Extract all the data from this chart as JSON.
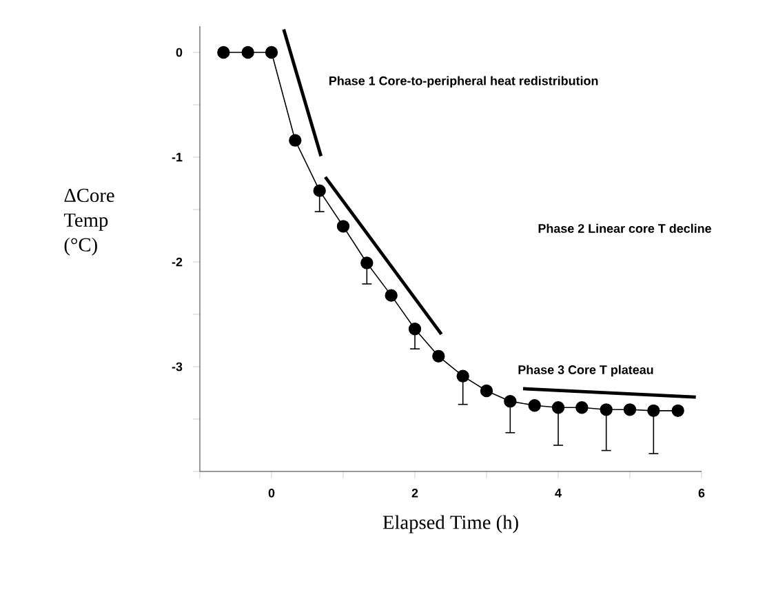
{
  "chart_data": {
    "type": "line",
    "xlabel": "Elapsed Time (h)",
    "ylabel": "ΔCore Temp (°C)",
    "xlim": [
      -1,
      6
    ],
    "xticks": [
      {
        "value": -1,
        "label": null
      },
      0,
      {
        "value": 1,
        "label": null
      },
      2,
      {
        "value": 3,
        "label": null
      },
      4,
      {
        "value": 5,
        "label": null
      },
      6
    ],
    "ylim": [
      -4,
      0.25
    ],
    "yticks": [
      {
        "value": -4,
        "label": null
      },
      {
        "value": -3.5,
        "label": null
      },
      -3,
      {
        "value": -2.5,
        "label": null
      },
      -2,
      {
        "value": -1.5,
        "label": null
      },
      -1,
      {
        "value": -0.5,
        "label": null
      },
      0
    ],
    "grid": false,
    "marker": "circle",
    "line_style": "solid",
    "series": [
      {
        "color": "#000000",
        "x": [
          -0.67,
          -0.33,
          0,
          0.33,
          0.67,
          1,
          1.33,
          1.67,
          2,
          2.33,
          2.67,
          3,
          3.33,
          3.67,
          4,
          4.33,
          4.67,
          5,
          5.33,
          5.67
        ],
        "values": [
          0,
          0,
          0,
          -0.84,
          -1.32,
          -1.66,
          -2.01,
          -2.32,
          -2.64,
          -2.9,
          -3.09,
          -3.23,
          -3.33,
          -3.37,
          -3.39,
          -3.39,
          -3.41,
          -3.41,
          -3.42,
          -3.42
        ],
        "errors": [
          null,
          null,
          null,
          null,
          [
            -1.52,
            -1.32
          ],
          null,
          [
            -2.21,
            -2.01
          ],
          null,
          [
            -2.83,
            -2.64
          ],
          null,
          [
            -3.36,
            -3.09
          ],
          null,
          [
            -3.63,
            -3.33
          ],
          null,
          [
            -3.75,
            -3.39
          ],
          null,
          [
            -3.8,
            -3.41
          ],
          null,
          [
            -3.83,
            -3.42
          ],
          null
        ]
      },
      {
        "color": "#000000",
        "marker": "none",
        "x": [
          0.17,
          0.69
        ],
        "values": [
          0.22,
          -0.99
        ]
      },
      {
        "color": "#000000",
        "marker": "none",
        "x": [
          0.75,
          2.37
        ],
        "values": [
          -1.19,
          -2.69
        ]
      },
      {
        "color": "#000000",
        "marker": "none",
        "x": [
          3.51,
          5.92
        ],
        "values": [
          -3.21,
          -3.29
        ]
      }
    ],
    "annotations": [
      "Phase 1 Core-to-peripheral heat redistribution",
      "Phase 2 Linear core T decline",
      "Phase 3 Core T plateau"
    ]
  }
}
